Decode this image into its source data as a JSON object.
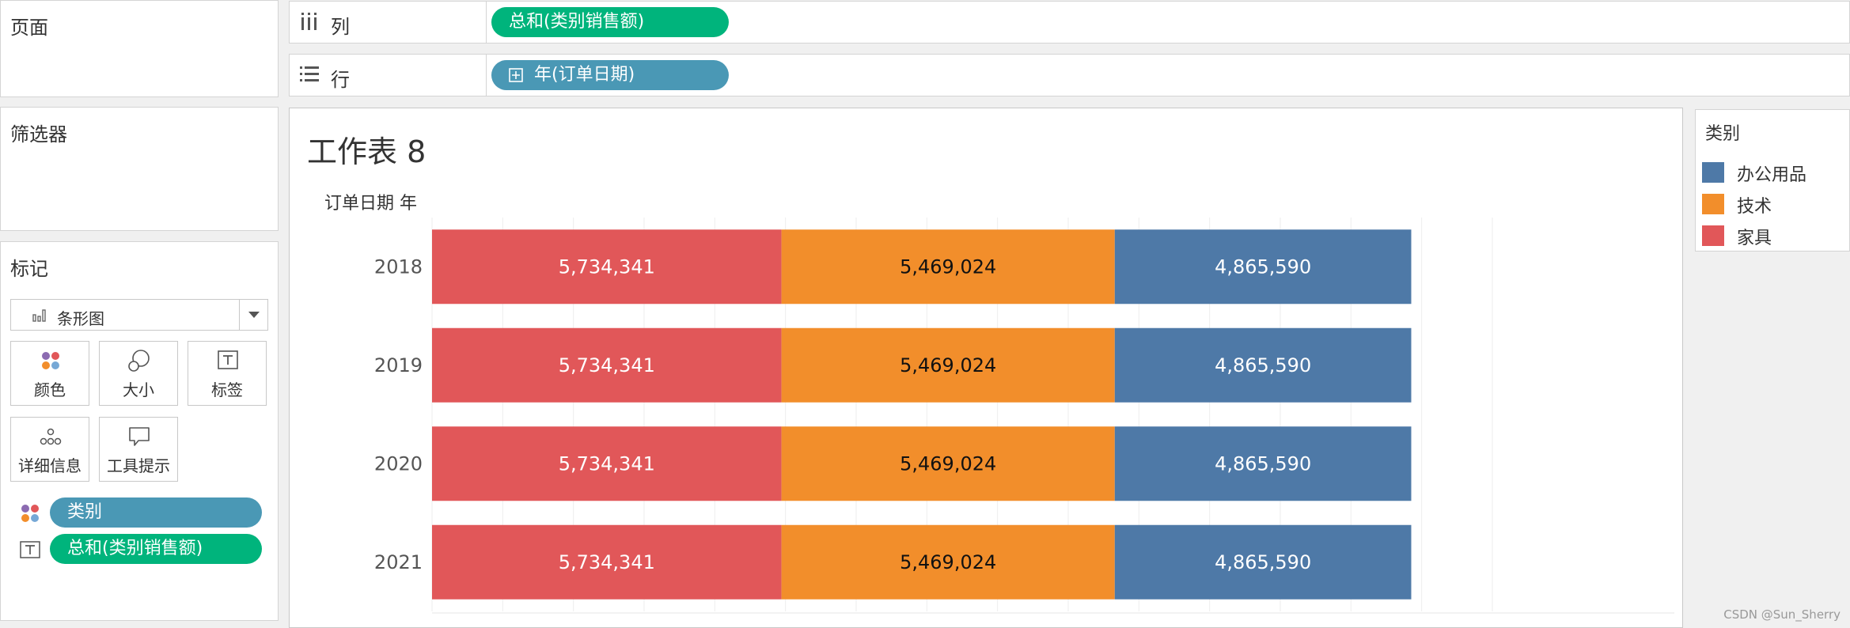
{
  "panels": {
    "pages_title": "页面",
    "filters_title": "筛选器",
    "marks_title": "标记"
  },
  "marks": {
    "mark_type": "条形图",
    "buttons": [
      {
        "label": "颜色",
        "icon": "color-dots-icon"
      },
      {
        "label": "大小",
        "icon": "size-circles-icon"
      },
      {
        "label": "标签",
        "icon": "text-label-icon"
      },
      {
        "label": "详细信息",
        "icon": "detail-dots-icon"
      },
      {
        "label": "工具提示",
        "icon": "tooltip-bubble-icon"
      }
    ],
    "pills": [
      {
        "label": "类别",
        "icon": "color-dots-icon",
        "color": "#4a98b5"
      },
      {
        "label": "总和(类别销售额)",
        "icon": "text-label-icon",
        "color": "#00b47c"
      }
    ]
  },
  "shelves": {
    "columns_label": "列",
    "columns_pill": "总和(类别销售额)",
    "columns_pill_color": "#00b47c",
    "rows_label": "行",
    "rows_pill": "年(订单日期)",
    "rows_pill_color": "#4a98b5"
  },
  "view": {
    "sheet_title": "工作表 8",
    "axis_title": "订单日期 年"
  },
  "legend": {
    "title": "类别",
    "items": [
      {
        "label": "办公用品",
        "color": "#4e79a7"
      },
      {
        "label": "技术",
        "color": "#f28e2b"
      },
      {
        "label": "家具",
        "color": "#e15759"
      }
    ]
  },
  "chart_data": {
    "type": "bar",
    "orientation": "horizontal",
    "stacked": true,
    "categories": [
      "2018",
      "2019",
      "2020",
      "2021"
    ],
    "series": [
      {
        "name": "家具",
        "color": "#e15759",
        "label_color": "#ffffff",
        "values": [
          5734341,
          5734341,
          5734341,
          5734341
        ],
        "labels": [
          "5,734,341",
          "5,734,341",
          "5,734,341",
          "5,734,341"
        ]
      },
      {
        "name": "技术",
        "color": "#f28e2b",
        "label_color": "#111111",
        "values": [
          5469024,
          5469024,
          5469024,
          5469024
        ],
        "labels": [
          "5,469,024",
          "5,469,024",
          "5,469,024",
          "5,469,024"
        ]
      },
      {
        "name": "办公用品",
        "color": "#4e79a7",
        "label_color": "#ffffff",
        "values": [
          4865590,
          4865590,
          4865590,
          4865590
        ],
        "labels": [
          "4,865,590",
          "4,865,590",
          "4,865,590",
          "4,865,590"
        ]
      }
    ],
    "xlim": [
      0,
      17400000
    ],
    "grid": true,
    "legend": "right"
  },
  "watermark": "CSDN @Sun_Sherry"
}
